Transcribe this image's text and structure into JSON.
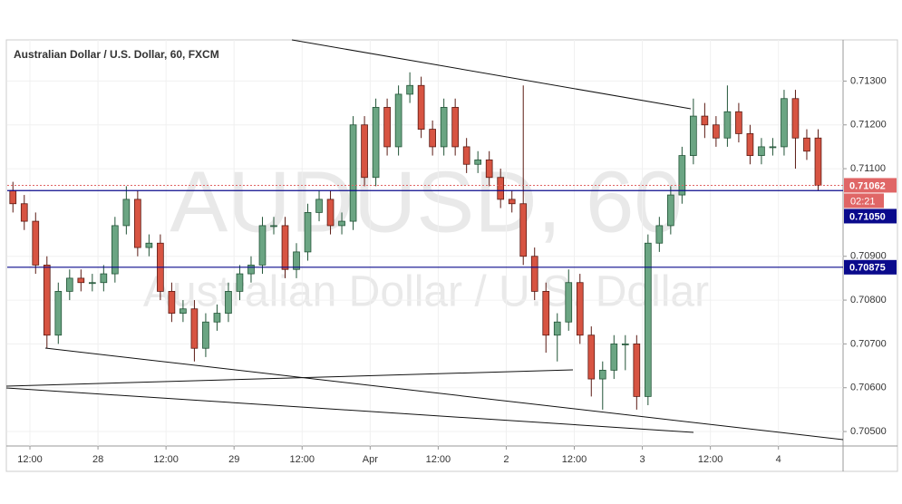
{
  "chart_data": {
    "type": "candlestick",
    "title": "Australian Dollar / U.S. Dollar, 60, FXCM",
    "watermark": "AUDUSD, 60",
    "watermark_subtitle": "Australian Dollar / U.S. Dollar",
    "colors": {
      "up": "#6ba583",
      "up_border": "#225437",
      "down": "#d75442",
      "down_border": "#5b1a13"
    },
    "xlim": [
      -0.5,
      73.2
    ],
    "xticks": [
      {
        "value": 1.5,
        "label": "12:00"
      },
      {
        "value": 7.5,
        "label": "28"
      },
      {
        "value": 13.5,
        "label": "12:00"
      },
      {
        "value": 19.5,
        "label": "29"
      },
      {
        "value": 25.5,
        "label": "12:00"
      },
      {
        "value": 31.5,
        "label": "Apr"
      },
      {
        "value": 37.5,
        "label": "12:00"
      },
      {
        "value": 43.5,
        "label": "2"
      },
      {
        "value": 49.5,
        "label": "12:00"
      },
      {
        "value": 55.5,
        "label": "3"
      },
      {
        "value": 61.5,
        "label": "12:00"
      },
      {
        "value": 67.5,
        "label": "4"
      }
    ],
    "ylim": [
      0.70467,
      0.71394
    ],
    "yticks": [
      {
        "value": 0.705,
        "label": "0.70500"
      },
      {
        "value": 0.706,
        "label": "0.70600"
      },
      {
        "value": 0.707,
        "label": "0.70700"
      },
      {
        "value": 0.708,
        "label": "0.70800"
      },
      {
        "value": 0.709,
        "label": "0.70900"
      },
      {
        "value": 0.711,
        "label": "0.71100"
      },
      {
        "value": 0.712,
        "label": "0.71200"
      },
      {
        "value": 0.713,
        "label": "0.71300"
      }
    ],
    "open": [
      0.7105,
      0.7102,
      0.7098,
      0.7088,
      0.7072,
      0.7082,
      0.7085,
      0.7084,
      0.7084,
      0.7086,
      0.7097,
      0.7103,
      0.7092,
      0.7093,
      0.7082,
      0.7077,
      0.7078,
      0.7069,
      0.7075,
      0.7077,
      0.7082,
      0.7086,
      0.7088,
      0.7097,
      0.7097,
      0.7087,
      0.7091,
      0.71,
      0.7103,
      0.7097,
      0.7098,
      0.712,
      0.7108,
      0.7124,
      0.7115,
      0.7127,
      0.7129,
      0.7119,
      0.7115,
      0.7124,
      0.7115,
      0.7111,
      0.7112,
      0.7108,
      0.7103,
      0.7102,
      0.709,
      0.7082,
      0.7072,
      0.7075,
      0.7084,
      0.7072,
      0.7062,
      0.7064,
      0.707,
      0.707,
      0.7058,
      0.7093,
      0.7097,
      0.7104,
      0.7113,
      0.7122,
      0.712,
      0.7117,
      0.7123,
      0.7118,
      0.7113,
      0.7115,
      0.7115,
      0.7126,
      0.7117,
      0.7117
    ],
    "high": [
      0.7107,
      0.7104,
      0.71,
      0.709,
      0.7084,
      0.7087,
      0.7087,
      0.7086,
      0.7088,
      0.7099,
      0.7106,
      0.7105,
      0.7095,
      0.7095,
      0.7084,
      0.708,
      0.708,
      0.7077,
      0.7079,
      0.7084,
      0.7088,
      0.709,
      0.7099,
      0.7099,
      0.7099,
      0.7093,
      0.7102,
      0.7105,
      0.7105,
      0.71,
      0.7122,
      0.7122,
      0.7126,
      0.7126,
      0.7129,
      0.7132,
      0.7131,
      0.7121,
      0.7126,
      0.7126,
      0.7117,
      0.7114,
      0.7114,
      0.711,
      0.7105,
      0.7129,
      0.7092,
      0.7084,
      0.7077,
      0.7087,
      0.7086,
      0.7074,
      0.7066,
      0.7072,
      0.7072,
      0.7072,
      0.7095,
      0.7099,
      0.7106,
      0.7115,
      0.7126,
      0.7125,
      0.7122,
      0.7129,
      0.7125,
      0.712,
      0.7117,
      0.7117,
      0.7128,
      0.7128,
      0.7119,
      0.7119
    ],
    "low": [
      0.71,
      0.7096,
      0.7086,
      0.7069,
      0.707,
      0.708,
      0.7082,
      0.7082,
      0.7082,
      0.7084,
      0.7095,
      0.709,
      0.709,
      0.708,
      0.7075,
      0.7075,
      0.7066,
      0.7067,
      0.7073,
      0.7075,
      0.708,
      0.7084,
      0.7086,
      0.7095,
      0.7085,
      0.7085,
      0.7089,
      0.7098,
      0.7095,
      0.7095,
      0.7096,
      0.7106,
      0.7106,
      0.7113,
      0.7113,
      0.7125,
      0.7117,
      0.7113,
      0.7113,
      0.7113,
      0.7109,
      0.7109,
      0.7106,
      0.7101,
      0.71,
      0.7088,
      0.708,
      0.7068,
      0.7066,
      0.7073,
      0.707,
      0.7058,
      0.7055,
      0.7062,
      0.7064,
      0.7055,
      0.7056,
      0.7091,
      0.7095,
      0.7102,
      0.7111,
      0.7117,
      0.7115,
      0.7115,
      0.7116,
      0.7111,
      0.7111,
      0.7113,
      0.7113,
      0.711,
      0.7112,
      0.7105
    ],
    "close": [
      0.7102,
      0.7098,
      0.7088,
      0.7072,
      0.7082,
      0.7085,
      0.7084,
      0.7084,
      0.7086,
      0.7097,
      0.7103,
      0.7092,
      0.7093,
      0.7082,
      0.7077,
      0.7078,
      0.7069,
      0.7075,
      0.7077,
      0.7082,
      0.7086,
      0.7088,
      0.7097,
      0.7097,
      0.7087,
      0.7091,
      0.71,
      0.7103,
      0.7097,
      0.7098,
      0.712,
      0.7108,
      0.7124,
      0.7115,
      0.7127,
      0.7129,
      0.7119,
      0.7115,
      0.7124,
      0.7115,
      0.7111,
      0.7112,
      0.7108,
      0.7103,
      0.7102,
      0.709,
      0.7082,
      0.7072,
      0.7075,
      0.7084,
      0.7072,
      0.7062,
      0.7064,
      0.707,
      0.707,
      0.7058,
      0.7093,
      0.7097,
      0.7104,
      0.7113,
      0.7122,
      0.712,
      0.7117,
      0.7123,
      0.7118,
      0.7113,
      0.7115,
      0.7115,
      0.7126,
      0.7117,
      0.7114,
      0.71062
    ],
    "last_price": {
      "value": 0.71062,
      "label": "0.71062",
      "color": "#e06666",
      "countdown": "02:21"
    },
    "levels": [
      {
        "value": 0.7105,
        "label": "0.71050",
        "color": "#0a0a8c"
      },
      {
        "value": 0.70875,
        "label": "0.70875",
        "color": "#0a0a8c"
      }
    ]
  }
}
